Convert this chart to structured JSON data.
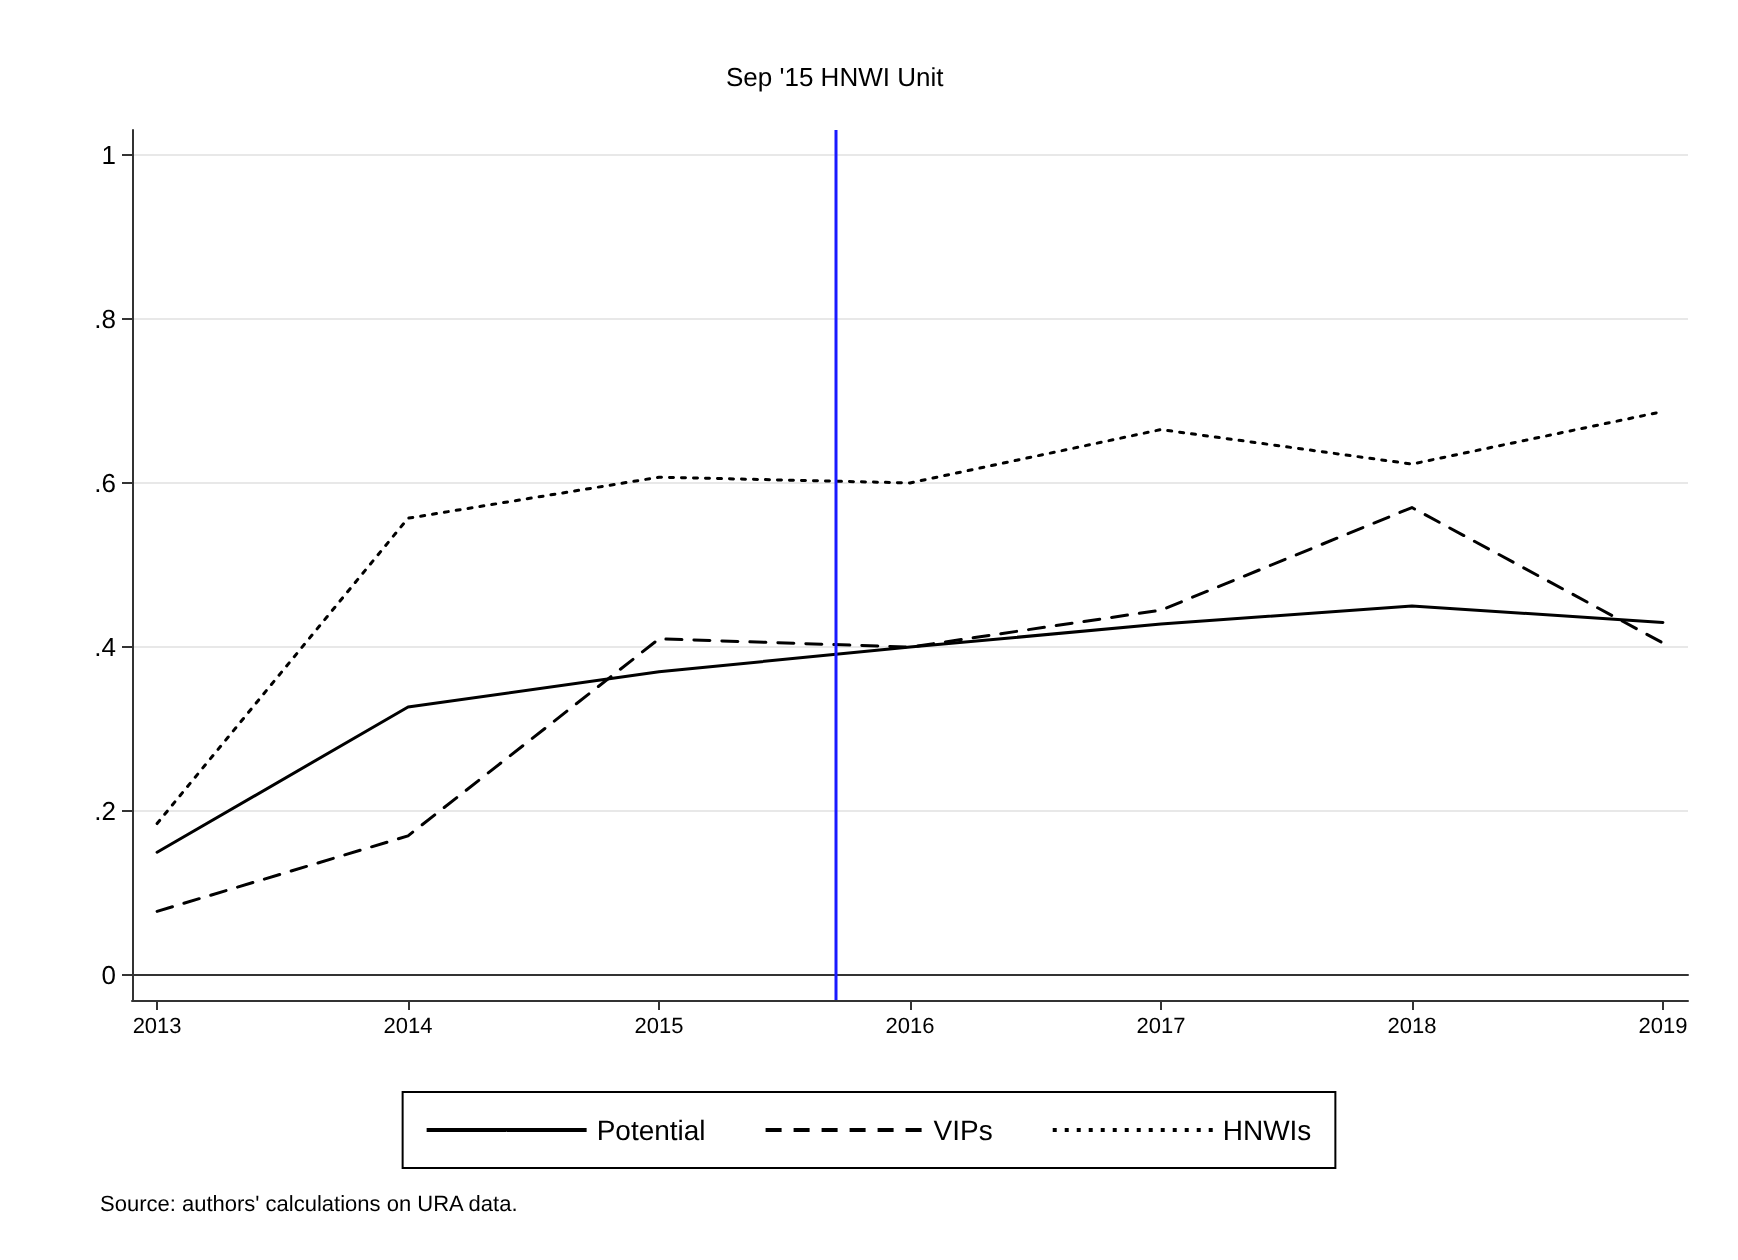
{
  "chart_data": {
    "type": "line",
    "x": [
      2013,
      2014,
      2015,
      2016,
      2017,
      2018,
      2019
    ],
    "series": [
      {
        "name": "Potential",
        "color": "#000000",
        "line_style": "solid",
        "values": [
          0.15,
          0.327,
          0.37,
          0.4,
          0.428,
          0.45,
          0.43
        ]
      },
      {
        "name": "VIPs",
        "color": "#000000",
        "line_style": "dashed",
        "values": [
          0.078,
          0.17,
          0.41,
          0.4,
          0.445,
          0.57,
          0.405
        ]
      },
      {
        "name": "HNWIs",
        "color": "#000000",
        "line_style": "dotted",
        "values": [
          0.185,
          0.557,
          0.607,
          0.6,
          0.665,
          0.623,
          0.687
        ]
      }
    ],
    "xlim": [
      2012.9,
      2019.1
    ],
    "xticks": [
      2013,
      2014,
      2015,
      2016,
      2017,
      2018,
      2019
    ],
    "ylim": [
      -0.03,
      1.03
    ],
    "yticks": [
      0,
      {
        "value": 0.2,
        "label": ".2"
      },
      {
        "value": 0.4,
        "label": ".4"
      },
      {
        "value": 0.6,
        "label": ".6"
      },
      {
        "value": 0.8,
        "label": ".8"
      },
      1
    ],
    "ref_lines": [
      {
        "axis": "x",
        "value": 2015.7,
        "label": "Sep '15 HNWI Unit",
        "color": "#1a1aff"
      }
    ],
    "grid": "y",
    "legend": "bottom",
    "marker": "none",
    "annotations": [
      "Source: authors' calculations on URA data."
    ]
  }
}
